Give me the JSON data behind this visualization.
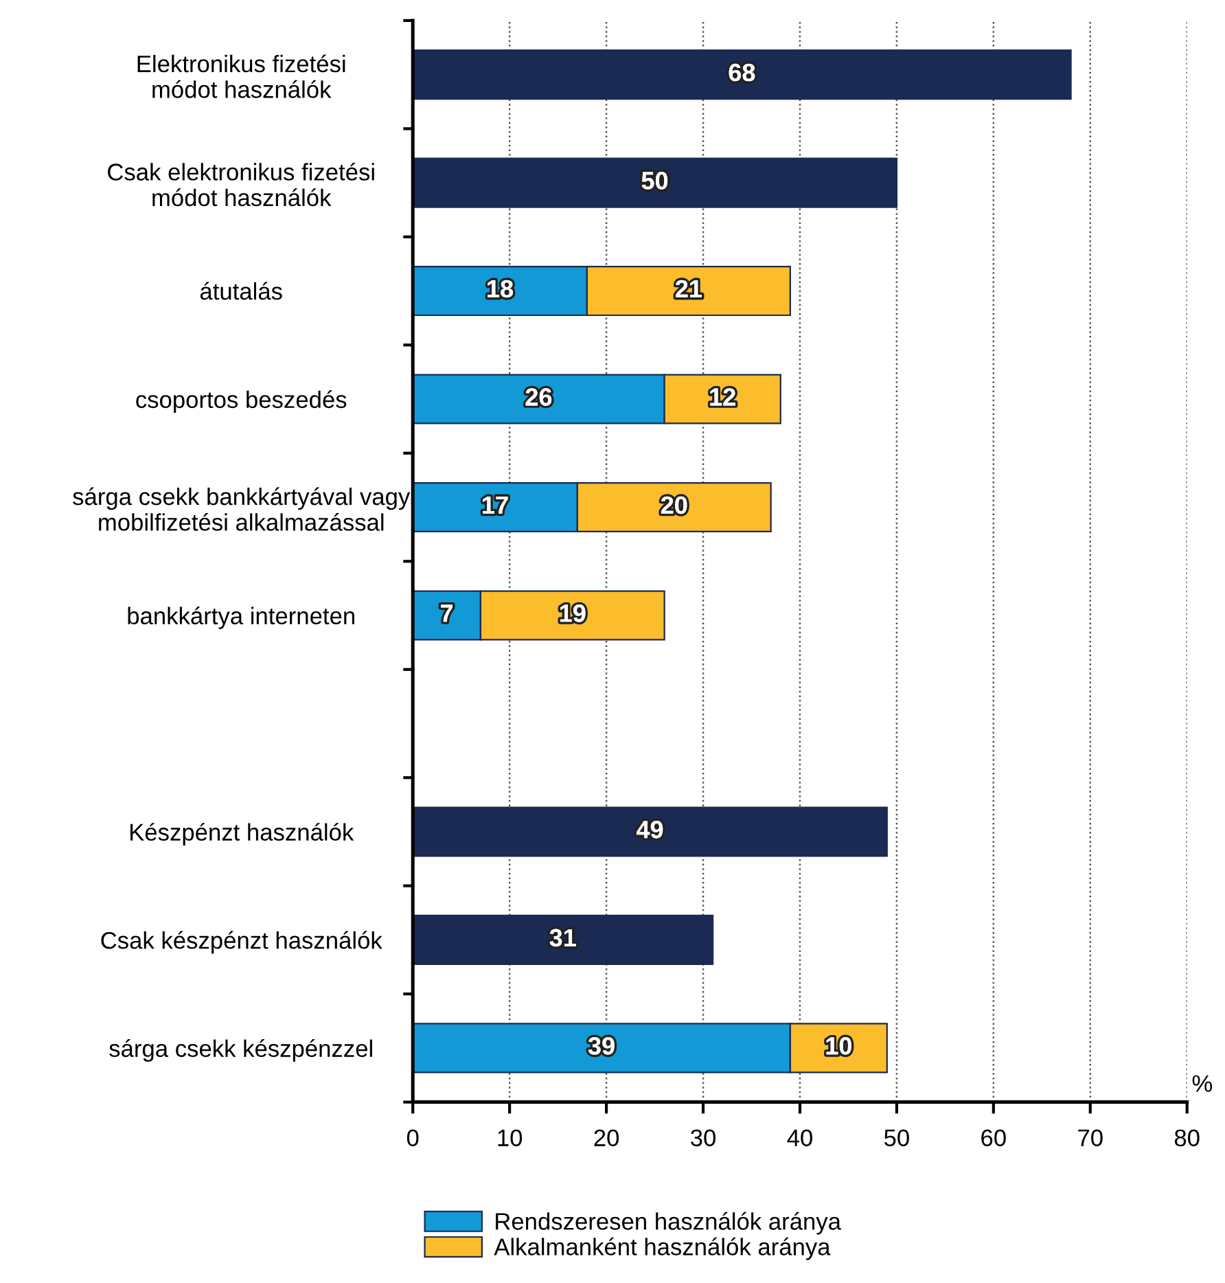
{
  "chart_data": {
    "type": "bar",
    "orientation": "horizontal",
    "stacked": true,
    "categories": [
      "Elektronikus fizetési\nmódot használók",
      "Csak elektronikus fizetési\nmódot használók",
      "átutalás",
      "csoportos beszedés",
      "sárga csekk bankkártyával vagy\nmobilfizetési alkalmazással",
      "bankkártya interneten",
      null,
      "Készpénzt használók",
      "Csak készpénzt használók",
      "sárga csekk készpénzzel"
    ],
    "series": [
      {
        "color": "#1b2a52",
        "values": [
          68,
          50,
          null,
          null,
          null,
          null,
          null,
          49,
          31,
          null
        ]
      },
      {
        "name": "Rendszeresen használók aránya",
        "color": "#139ad6",
        "values": [
          null,
          null,
          18,
          26,
          17,
          7,
          null,
          null,
          null,
          39
        ]
      },
      {
        "name": "Alkalmanként használók aránya",
        "color": "#fbbd2b",
        "values": [
          null,
          null,
          21,
          12,
          20,
          19,
          null,
          null,
          null,
          10
        ]
      }
    ],
    "xlim": [
      0,
      80
    ],
    "xticks": [
      0,
      10,
      20,
      30,
      40,
      50,
      60,
      70,
      80
    ],
    "xlabel": "%",
    "grid": "x",
    "legend": "bottom",
    "data_labels": true
  }
}
